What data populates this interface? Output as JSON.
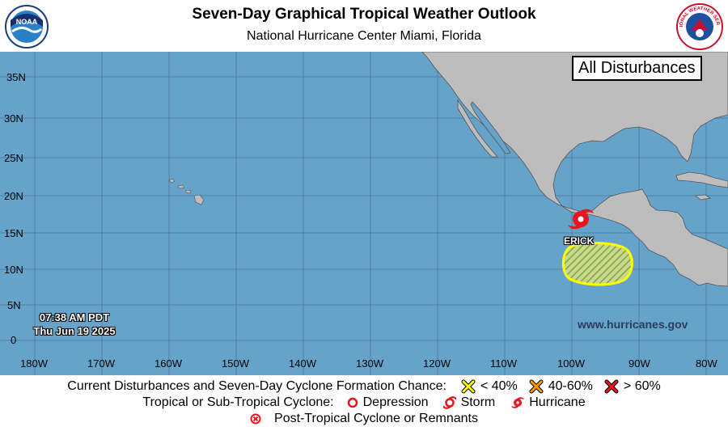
{
  "header": {
    "title": "Seven-Day Graphical Tropical Weather Outlook",
    "subtitle": "National Hurricane Center  Miami, Florida",
    "left_logo": "NOAA",
    "right_logo": "NATIONAL WEATHER SERVICE"
  },
  "map": {
    "panel_label": "All Disturbances",
    "timestamp": {
      "time": "07:38 AM PDT",
      "date": "Thu Jun 19 2025"
    },
    "website": "www.hurricanes.gov",
    "lat_labels": [
      "35N",
      "30N",
      "25N",
      "20N",
      "15N",
      "10N",
      "5N",
      "0"
    ],
    "lon_labels": [
      "180W",
      "170W",
      "160W",
      "150W",
      "140W",
      "130W",
      "120W",
      "110W",
      "100W",
      "90W",
      "80W"
    ],
    "colors": {
      "ocean": "#65a3cb",
      "land": "#bdbdbd",
      "storm": "#e8141f",
      "area_outline": "#ffff00"
    },
    "storms": [
      {
        "name": "ERICK",
        "type": "hurricane",
        "icon": "hurricane-icon"
      }
    ],
    "disturbance_areas": [
      {
        "category": "< 40%",
        "color": "#ffff00",
        "pattern": "hatched"
      }
    ]
  },
  "legend": {
    "row1_label": "Current Disturbances and Seven-Day Cyclone Formation Chance:",
    "low": "< 40%",
    "medium": "40-60%",
    "high": "> 60%",
    "row2_label": "Tropical or Sub-Tropical Cyclone:",
    "depression": "Depression",
    "storm": "Storm",
    "hurricane": "Hurricane",
    "post_tropical": "Post-Tropical Cyclone or Remnants",
    "colors": {
      "low": "#ffff00",
      "medium": "#ff9900",
      "high": "#e8141f",
      "cyclone": "#e8141f"
    }
  }
}
